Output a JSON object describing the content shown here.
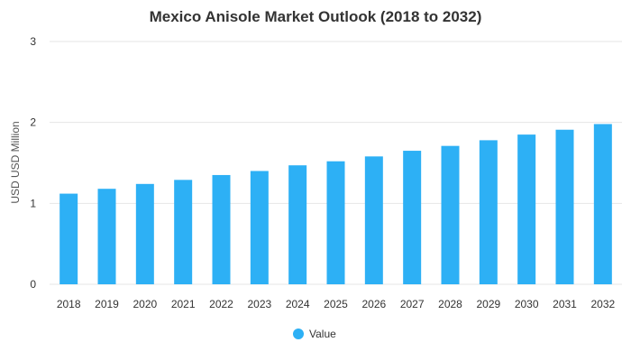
{
  "chart_data": {
    "type": "bar",
    "title": "Mexico Anisole Market Outlook (2018 to 2032)",
    "xlabel": "",
    "ylabel": "USD USD Million",
    "ylim": [
      0,
      3
    ],
    "yticks": [
      0,
      1,
      2,
      3
    ],
    "grid": true,
    "legend_position": "bottom",
    "categories": [
      "2018",
      "2019",
      "2020",
      "2021",
      "2022",
      "2023",
      "2024",
      "2025",
      "2026",
      "2027",
      "2028",
      "2029",
      "2030",
      "2031",
      "2032"
    ],
    "series": [
      {
        "name": "Value",
        "color": "#2db0f5",
        "values": [
          1.12,
          1.18,
          1.24,
          1.29,
          1.35,
          1.4,
          1.47,
          1.52,
          1.58,
          1.65,
          1.71,
          1.78,
          1.85,
          1.91,
          1.98
        ]
      }
    ]
  }
}
